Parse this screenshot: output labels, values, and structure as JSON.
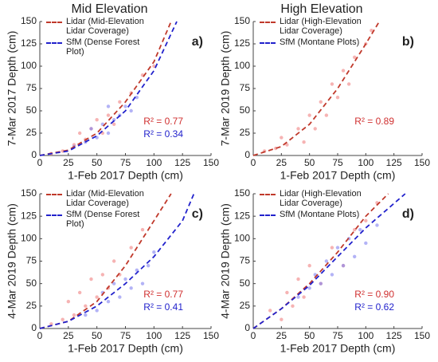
{
  "chart_data": [
    {
      "type": "scatter",
      "title": "Mid Elevation",
      "panel_label": "a)",
      "xlabel": "1-Feb 2017 Depth (cm)",
      "ylabel": "7-Mar 2017 Depth (cm)",
      "xlim": [
        0,
        150
      ],
      "ylim": [
        0,
        150
      ],
      "xticks": [
        0,
        25,
        50,
        75,
        100,
        125,
        150
      ],
      "yticks": [
        0,
        25,
        50,
        75,
        100,
        125,
        150
      ],
      "series": [
        {
          "name": "Lidar (Mid-Elevation Lidar Coverage)",
          "color": "#c0392b",
          "x": [
            0,
            25,
            50,
            75,
            100,
            115
          ],
          "values": [
            0,
            6,
            25,
            60,
            105,
            150
          ]
        },
        {
          "name": "SfM (Dense Forest Plot)",
          "color": "#2222cc",
          "x": [
            0,
            25,
            50,
            75,
            100,
            120
          ],
          "values": [
            0,
            5,
            22,
            50,
            95,
            150
          ]
        }
      ],
      "clouds": [
        {
          "color": "#f08080",
          "x": [
            10,
            20,
            30,
            35,
            40,
            45,
            50,
            55,
            60,
            65,
            70,
            80,
            90,
            100
          ],
          "y": [
            2,
            5,
            12,
            25,
            18,
            30,
            40,
            25,
            45,
            35,
            60,
            70,
            90,
            100
          ]
        },
        {
          "color": "#8080f0",
          "x": [
            30,
            40,
            45,
            50,
            55,
            60,
            60,
            65,
            70,
            75,
            80,
            85
          ],
          "y": [
            10,
            15,
            30,
            20,
            35,
            25,
            55,
            40,
            45,
            55,
            50,
            65
          ]
        }
      ],
      "annotations": [
        {
          "text": "R² = 0.77",
          "color": "#d03030"
        },
        {
          "text": "R² = 0.34",
          "color": "#2222cc"
        }
      ]
    },
    {
      "type": "scatter",
      "title": "High Elevation",
      "panel_label": "b)",
      "xlabel": "1-Feb 2017 Depth (cm)",
      "ylabel": "7-Mar 2019 Depth (cm)",
      "xlim": [
        0,
        150
      ],
      "ylim": [
        0,
        150
      ],
      "xticks": [
        0,
        25,
        50,
        75,
        100,
        125,
        150
      ],
      "yticks": [
        0,
        25,
        50,
        75,
        100,
        125,
        150
      ],
      "series": [
        {
          "name": "Lidar (High-Elevation Lidar Coverage)",
          "color": "#c0392b",
          "x": [
            0,
            25,
            50,
            75,
            100,
            112
          ],
          "values": [
            0,
            10,
            35,
            75,
            125,
            150
          ]
        },
        {
          "name": "SfM (Montane Plots)",
          "color": "#2222cc",
          "x": [],
          "values": []
        }
      ],
      "clouds": [
        {
          "color": "#f08080",
          "x": [
            10,
            20,
            25,
            30,
            40,
            45,
            50,
            55,
            60,
            65,
            70,
            75,
            80,
            85,
            90,
            100,
            105
          ],
          "y": [
            5,
            8,
            20,
            12,
            30,
            15,
            45,
            30,
            60,
            45,
            80,
            65,
            95,
            80,
            110,
            125,
            140
          ]
        }
      ],
      "annotations": [
        {
          "text": "R² = 0.89",
          "color": "#d03030"
        }
      ]
    },
    {
      "type": "scatter",
      "panel_label": "c)",
      "xlabel": "1-Feb 2017 Depth (cm)",
      "ylabel": "4-Mar 2019 Depth (cm)",
      "xlim": [
        0,
        150
      ],
      "ylim": [
        0,
        150
      ],
      "xticks": [
        0,
        25,
        50,
        75,
        100,
        125,
        150
      ],
      "yticks": [
        0,
        25,
        50,
        75,
        100,
        125,
        150
      ],
      "series": [
        {
          "name": "Lidar (Mid-Elevation Lidar Coverage)",
          "color": "#c0392b",
          "x": [
            0,
            25,
            50,
            75,
            100,
            115
          ],
          "values": [
            0,
            8,
            30,
            70,
            120,
            150
          ]
        },
        {
          "name": "SfM (Dense Forest Plot)",
          "color": "#2222cc",
          "x": [
            0,
            25,
            50,
            75,
            100,
            125,
            135
          ],
          "values": [
            0,
            8,
            25,
            50,
            80,
            120,
            150
          ]
        }
      ],
      "clouds": [
        {
          "color": "#f08080",
          "x": [
            10,
            20,
            25,
            30,
            35,
            40,
            45,
            50,
            55,
            60,
            65,
            70,
            80,
            90
          ],
          "y": [
            5,
            10,
            30,
            15,
            40,
            25,
            55,
            35,
            60,
            45,
            75,
            60,
            90,
            110
          ]
        },
        {
          "color": "#8080f0",
          "x": [
            40,
            50,
            55,
            60,
            65,
            70,
            75,
            80,
            85,
            90,
            95,
            100
          ],
          "y": [
            15,
            20,
            40,
            30,
            50,
            35,
            55,
            45,
            65,
            50,
            70,
            85
          ]
        }
      ],
      "annotations": [
        {
          "text": "R² = 0.77",
          "color": "#d03030"
        },
        {
          "text": "R² = 0.41",
          "color": "#2222cc"
        }
      ]
    },
    {
      "type": "scatter",
      "panel_label": "d)",
      "xlabel": "1-Feb 2017 Depth (cm)",
      "ylabel": "4-Mar 2019 Depth (cm)",
      "xlim": [
        0,
        150
      ],
      "ylim": [
        0,
        150
      ],
      "xticks": [
        0,
        25,
        50,
        75,
        100,
        125,
        150
      ],
      "yticks": [
        0,
        25,
        50,
        75,
        100,
        125,
        150
      ],
      "series": [
        {
          "name": "Lidar (High-Elevation Lidar Coverage)",
          "color": "#c0392b",
          "x": [
            0,
            25,
            50,
            75,
            100,
            120
          ],
          "values": [
            0,
            22,
            50,
            85,
            125,
            150
          ]
        },
        {
          "name": "SfM (Montane Plots)",
          "color": "#2222cc",
          "x": [
            0,
            25,
            50,
            75,
            100,
            135
          ],
          "values": [
            0,
            22,
            48,
            80,
            112,
            150
          ]
        }
      ],
      "clouds": [
        {
          "color": "#f08080",
          "x": [
            15,
            25,
            30,
            35,
            40,
            45,
            50,
            60,
            70,
            80,
            90,
            100,
            110
          ],
          "y": [
            20,
            10,
            40,
            25,
            55,
            35,
            70,
            50,
            90,
            70,
            110,
            120,
            140
          ]
        },
        {
          "color": "#8080f0",
          "x": [
            40,
            50,
            55,
            60,
            65,
            70,
            75,
            80,
            85,
            90,
            95,
            100,
            110
          ],
          "y": [
            35,
            45,
            60,
            50,
            75,
            60,
            90,
            70,
            100,
            80,
            110,
            95,
            115
          ]
        }
      ],
      "annotations": [
        {
          "text": "R² = 0.90",
          "color": "#d03030"
        },
        {
          "text": "R² = 0.62",
          "color": "#2222cc"
        }
      ]
    }
  ]
}
